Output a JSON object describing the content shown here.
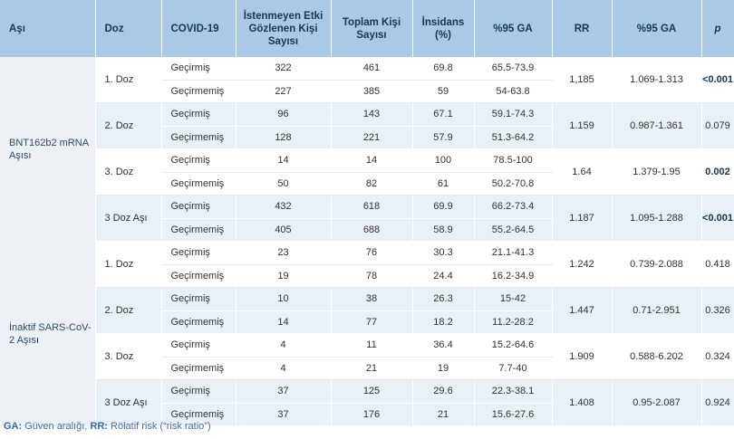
{
  "headers": [
    "Aşı",
    "Doz",
    "COVID-19",
    "İstenmeyen Etki Gözlenen Kişi Sayısı",
    "Toplam Kişi Sayısı",
    "İnsidans (%)",
    "%95 GA",
    "RR",
    "%95 GA",
    "p"
  ],
  "groups": [
    {
      "vaccine": "BNT162b2 mRNA Aşısı",
      "doses": [
        {
          "dose": "1. Doz",
          "rr": "1,185",
          "ci": "1.069-1.313",
          "p": "<0.001",
          "p_bold": true,
          "rows": [
            [
              "Geçirmiş",
              "322",
              "461",
              "69.8",
              "65.5-73.9"
            ],
            [
              "Geçirmemiş",
              "227",
              "385",
              "59",
              "54-63.8"
            ]
          ]
        },
        {
          "dose": "2. Doz",
          "rr": "1.159",
          "ci": "0.987-1.361",
          "p": "0.079",
          "p_bold": false,
          "rows": [
            [
              "Geçirmiş",
              "96",
              "143",
              "67.1",
              "59.1-74.3"
            ],
            [
              "Geçirmemiş",
              "128",
              "221",
              "57.9",
              "51.3-64.2"
            ]
          ]
        },
        {
          "dose": "3. Doz",
          "rr": "1.64",
          "ci": "1.379-1.95",
          "p": "0.002",
          "p_bold": true,
          "rows": [
            [
              "Geçirmiş",
              "14",
              "14",
              "100",
              "78.5-100"
            ],
            [
              "Geçirmemiş",
              "50",
              "82",
              "61",
              "50.2-70.8"
            ]
          ]
        },
        {
          "dose": "3 Doz Aşı",
          "rr": "1.187",
          "ci": "1.095-1.288",
          "p": "<0.001",
          "p_bold": true,
          "rows": [
            [
              "Geçirmiş",
              "432",
              "618",
              "69.9",
              "66.2-73.4"
            ],
            [
              "Geçirmemiş",
              "405",
              "688",
              "58.9",
              "55.2-64.5"
            ]
          ]
        }
      ]
    },
    {
      "vaccine": "İnaktif SARS-CoV-2 Aşısı",
      "doses": [
        {
          "dose": "1. Doz",
          "rr": "1.242",
          "ci": "0.739-2.088",
          "p": "0.418",
          "p_bold": false,
          "rows": [
            [
              "Geçirmiş",
              "23",
              "76",
              "30.3",
              "21.1-41.3"
            ],
            [
              "Geçirmemiş",
              "19",
              "78",
              "24.4",
              "16.2-34.9"
            ]
          ]
        },
        {
          "dose": "2. Doz",
          "rr": "1.447",
          "ci": "0.71-2.951",
          "p": "0.326",
          "p_bold": false,
          "rows": [
            [
              "Geçirmiş",
              "10",
              "38",
              "26.3",
              "15-42"
            ],
            [
              "Geçirmemiş",
              "14",
              "77",
              "18.2",
              "11.2-28.2"
            ]
          ]
        },
        {
          "dose": "3. Doz",
          "rr": "1.909",
          "ci": "0.588-6.202",
          "p": "0.324",
          "p_bold": false,
          "rows": [
            [
              "Geçirmiş",
              "4",
              "11",
              "36.4",
              "15.2-64.6"
            ],
            [
              "Geçirmemiş",
              "4",
              "21",
              "19",
              "7.7-40"
            ]
          ]
        },
        {
          "dose": "3 Doz Aşı",
          "rr": "1.408",
          "ci": "0.95-2.087",
          "p": "0.924",
          "p_bold": false,
          "rows": [
            [
              "Geçirmiş",
              "37",
              "125",
              "29.6",
              "22.3-38.1"
            ],
            [
              "Geçirmemiş",
              "37",
              "176",
              "21",
              "15.6-27.6"
            ]
          ]
        }
      ]
    }
  ],
  "footnote": {
    "ga_abbr": "GA:",
    "ga_text": " Güven aralığı, ",
    "rr_abbr": "RR:",
    "rr_text": " Rölatif risk (“risk ratio”)"
  }
}
